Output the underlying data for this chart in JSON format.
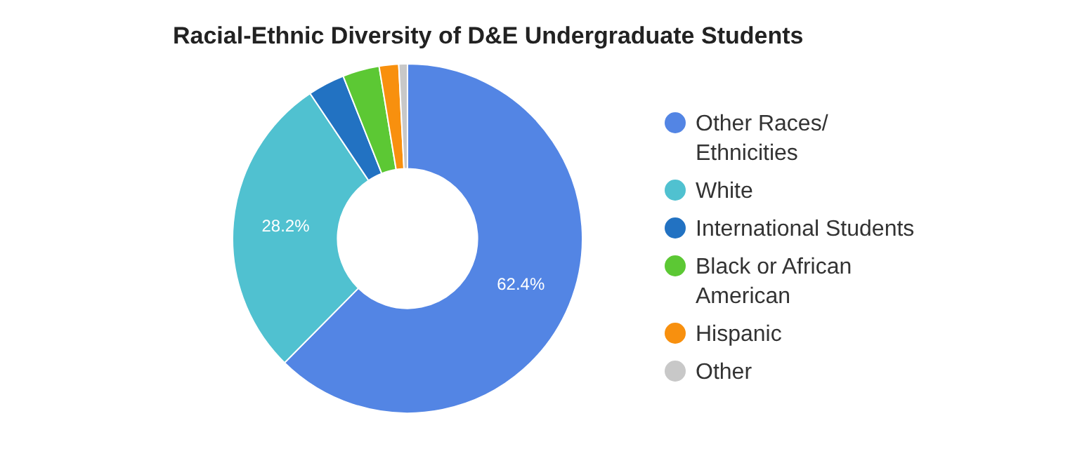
{
  "chart_data": {
    "type": "donut",
    "title": "Racial-Ethnic Diversity of D&E Undergraduate Students",
    "categories": [
      "Other Races/ Ethnicities",
      "White",
      "International Students",
      "Black or African American",
      "Hispanic",
      "Other"
    ],
    "values": [
      62.4,
      28.2,
      3.4,
      3.4,
      1.8,
      0.8
    ],
    "colors": [
      "#5385e4",
      "#50c1d0",
      "#2272c2",
      "#5cc834",
      "#f8900e",
      "#c8c8c8"
    ],
    "value_labels": [
      "62.4%",
      "28.2%",
      null,
      null,
      null,
      null
    ],
    "legend": "right"
  }
}
